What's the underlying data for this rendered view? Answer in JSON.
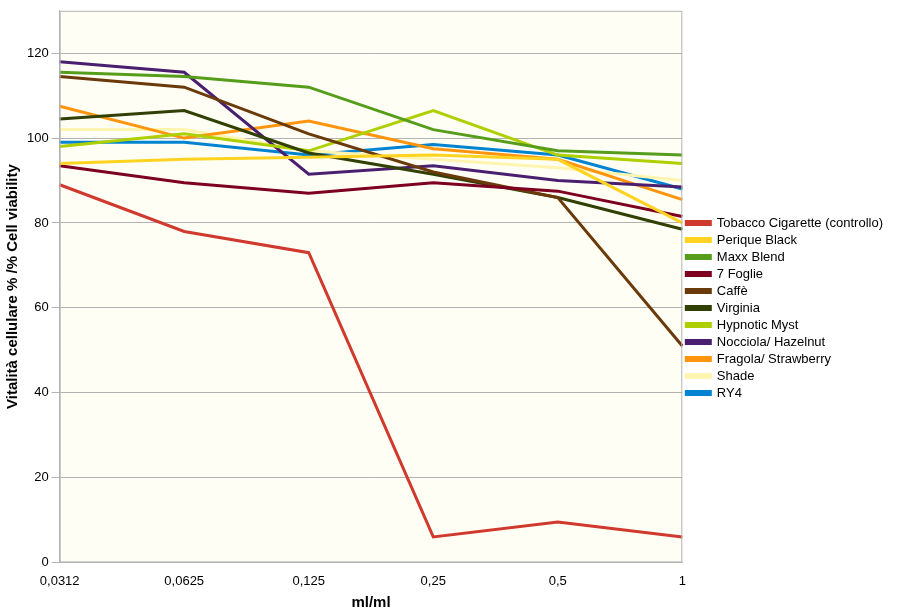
{
  "chart_data": {
    "type": "line",
    "x_label": "ml/ml",
    "y_label": "Vitalità cellulare % /% Cell viability",
    "categories": [
      "0,0312",
      "0,0625",
      "0,125",
      "0,25",
      "0,5",
      "1"
    ],
    "series": [
      {
        "name": "Tobacco Cigarette (controllo)",
        "color": "#d03a2e",
        "values": [
          89,
          78,
          73,
          6,
          9.5,
          6
        ]
      },
      {
        "name": "Perique Black",
        "color": "#ffd320",
        "values": [
          94,
          95,
          95.5,
          96,
          95,
          80
        ]
      },
      {
        "name": "Maxx Blend",
        "color": "#579d1c",
        "values": [
          115.5,
          114.5,
          112,
          102,
          97,
          96
        ]
      },
      {
        "name": "7 Foglie",
        "color": "#7e0021",
        "values": [
          93.5,
          89.5,
          87,
          89.5,
          87.5,
          81.5
        ]
      },
      {
        "name": "Caffè",
        "color": "#6b3a0a",
        "values": [
          114.5,
          112,
          101,
          92,
          86,
          51
        ]
      },
      {
        "name": "Virginia",
        "color": "#314004",
        "values": [
          104.5,
          106.5,
          96.5,
          91.5,
          86,
          78.5
        ]
      },
      {
        "name": "Hypnotic Myst",
        "color": "#aecf00",
        "values": [
          98,
          101,
          97,
          106.5,
          96,
          94
        ]
      },
      {
        "name": "Nocciola/ Hazelnut",
        "color": "#4b1f6f",
        "values": [
          118,
          115.5,
          91.5,
          93.5,
          90,
          88.5
        ]
      },
      {
        "name": "Fragola/ Strawberry",
        "color": "#ff950e",
        "values": [
          107.5,
          100,
          104,
          97.5,
          95,
          85.5
        ]
      },
      {
        "name": "Shade",
        "color": "#fff5b0",
        "values": [
          102,
          102,
          97,
          95,
          93,
          90
        ]
      },
      {
        "name": "RY4",
        "color": "#0084d1",
        "values": [
          99,
          99,
          96,
          98.5,
          96,
          88
        ]
      }
    ],
    "ylim": [
      0,
      130
    ],
    "yticks": [
      0,
      20,
      40,
      60,
      80,
      100,
      120
    ],
    "grid": true,
    "legend": "right"
  }
}
